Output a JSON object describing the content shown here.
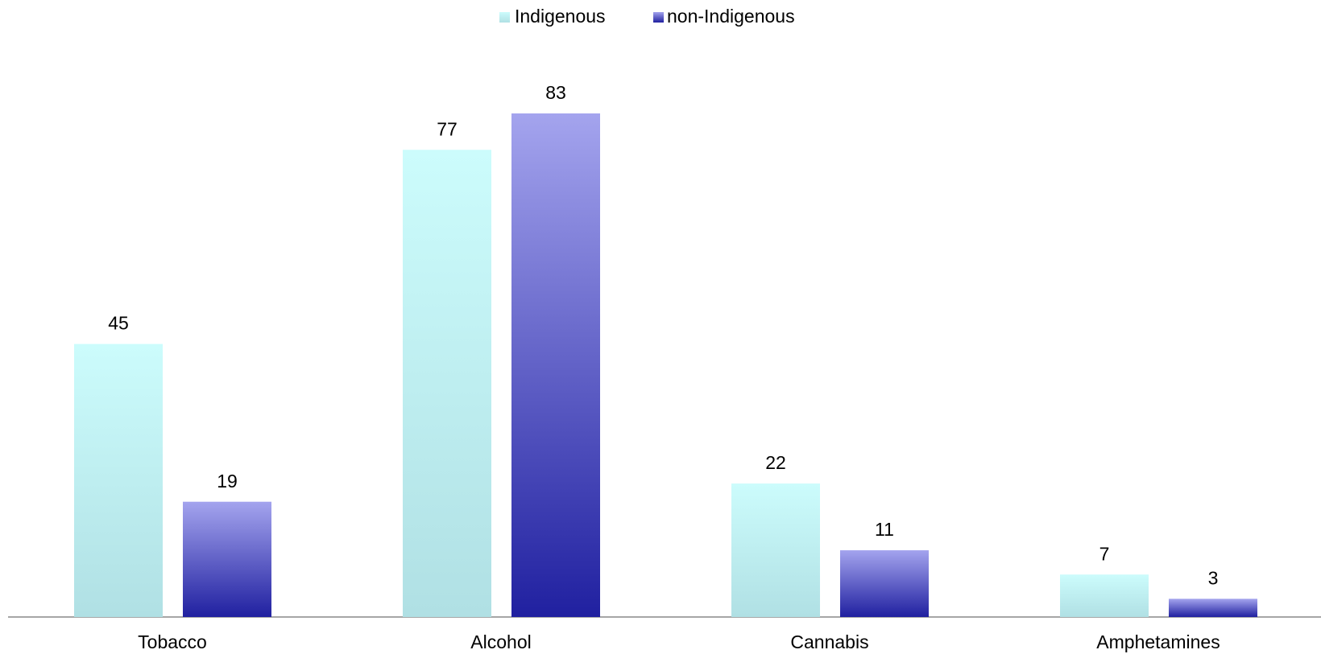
{
  "chart_data": {
    "type": "bar",
    "categories": [
      "Tobacco",
      "Alcohol",
      "Cannabis",
      "Amphetamines"
    ],
    "series": [
      {
        "name": "Indigenous",
        "color": "#ccfcfc",
        "gradient_end": "#b0e0e4",
        "values": [
          45,
          77,
          22,
          7
        ]
      },
      {
        "name": "non-Indigenous",
        "color": "#a4a4ee",
        "gradient_end": "#2020a0",
        "values": [
          19,
          83,
          11,
          3
        ]
      }
    ],
    "legend": "top",
    "grid": false,
    "data_labels": true
  }
}
